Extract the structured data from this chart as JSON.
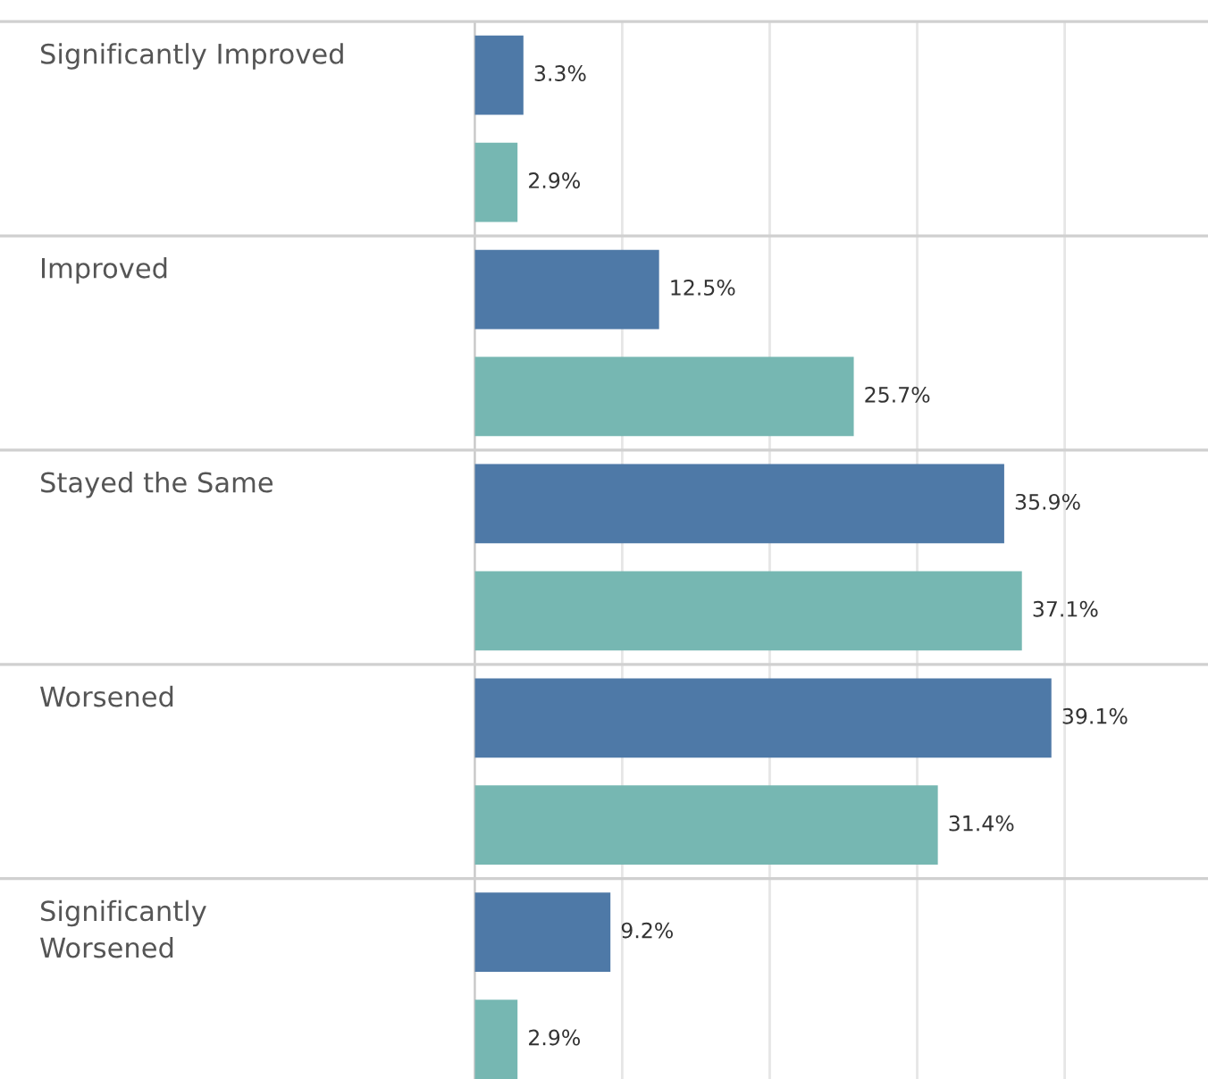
{
  "chart_data": {
    "type": "bar",
    "orientation": "horizontal",
    "categories": [
      "Significantly Improved",
      "Improved",
      "Stayed the Same",
      "Worsened",
      "Significantly\nWorsened"
    ],
    "series": [
      {
        "color": "#4e79a7",
        "values": [
          3.3,
          12.5,
          35.9,
          39.1,
          9.2
        ],
        "value_labels": [
          "3.3%",
          "12.5%",
          "35.9%",
          "39.1%",
          "9.2%"
        ]
      },
      {
        "color": "#76b7b2",
        "values": [
          2.9,
          25.7,
          37.1,
          31.4,
          2.9
        ],
        "value_labels": [
          "2.9%",
          "25.7%",
          "37.1%",
          "31.4%",
          "2.9%"
        ]
      }
    ],
    "xticks": [
      {
        "value": 0,
        "label": null
      },
      {
        "value": 10,
        "label": null
      },
      {
        "value": 20,
        "label": null
      },
      {
        "value": 30,
        "label": null
      },
      {
        "value": 40,
        "label": null
      }
    ],
    "grid": "x",
    "legend": false
  }
}
